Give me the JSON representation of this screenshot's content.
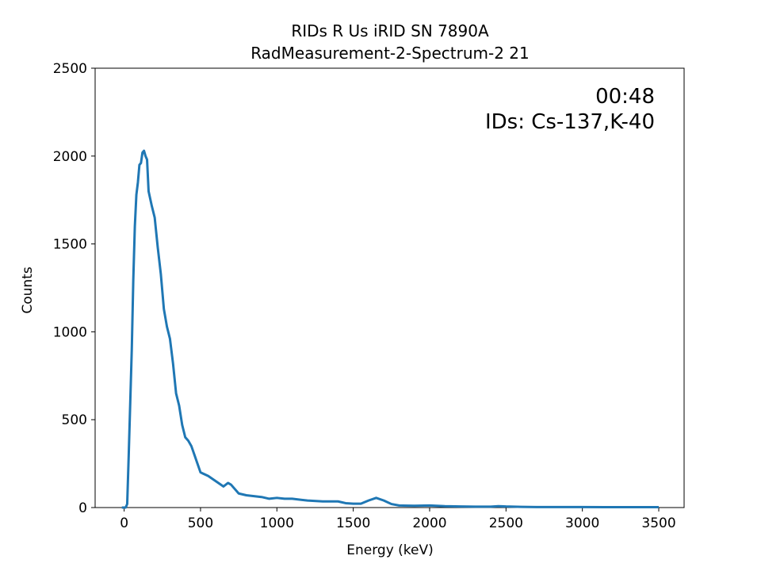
{
  "chart_data": {
    "type": "line",
    "title": "RIDs R Us iRID SN 7890A",
    "subtitle": "RadMeasurement-2-Spectrum-2 21",
    "x_label": "Energy (keV)",
    "y_label": "Counts",
    "annotations": [
      "00:48",
      "IDs: Cs-137,K-40"
    ],
    "color": "#1f77b4",
    "x": [
      -15,
      10,
      20,
      30,
      40,
      50,
      60,
      70,
      80,
      90,
      100,
      110,
      120,
      130,
      140,
      150,
      160,
      180,
      200,
      220,
      240,
      260,
      280,
      300,
      320,
      340,
      360,
      380,
      400,
      420,
      440,
      460,
      480,
      500,
      550,
      600,
      650,
      680,
      700,
      750,
      800,
      850,
      900,
      950,
      1000,
      1050,
      1100,
      1200,
      1300,
      1400,
      1450,
      1500,
      1550,
      1600,
      1650,
      1700,
      1750,
      1800,
      1900,
      2000,
      2100,
      2200,
      2300,
      2400,
      2450,
      2500,
      2600,
      2700,
      2800,
      3000,
      3200,
      3400,
      3500
    ],
    "values": [
      0,
      0,
      20,
      300,
      600,
      900,
      1300,
      1600,
      1780,
      1850,
      1950,
      1960,
      2020,
      2030,
      2000,
      1980,
      1800,
      1720,
      1650,
      1480,
      1330,
      1130,
      1030,
      960,
      820,
      650,
      580,
      470,
      400,
      380,
      350,
      300,
      250,
      200,
      180,
      150,
      120,
      140,
      130,
      80,
      70,
      65,
      60,
      50,
      55,
      50,
      50,
      40,
      35,
      35,
      25,
      22,
      22,
      40,
      55,
      40,
      20,
      12,
      10,
      12,
      8,
      6,
      5,
      5,
      8,
      6,
      4,
      3,
      3,
      3,
      2,
      2,
      2
    ],
    "xlim": [
      -190,
      3666
    ],
    "ylim": [
      0,
      2500
    ],
    "xticks": [
      0,
      500,
      1000,
      1500,
      2000,
      2500,
      3000,
      3500
    ],
    "yticks": [
      0,
      500,
      1000,
      1500,
      2000,
      2500
    ]
  }
}
